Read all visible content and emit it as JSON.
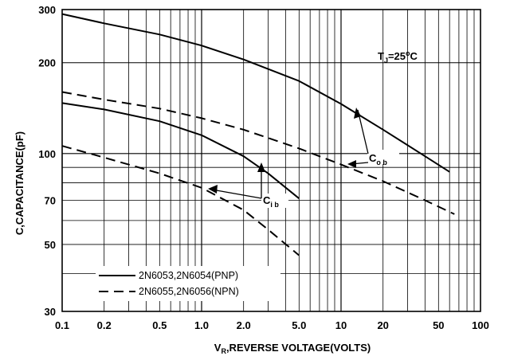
{
  "chart_data": {
    "type": "line",
    "xlabel_prefix": "V",
    "xlabel_sub": "R",
    "xlabel_rest": ",REVERSE VOLTAGE(VOLTS)",
    "ylabel": "C,CAPACITANCE(pF)",
    "xscale": "log",
    "yscale": "log",
    "xlim": [
      0.1,
      100
    ],
    "ylim": [
      30,
      300
    ],
    "grid": true,
    "x_ticks": [
      "0.1",
      "0.2",
      "0.5",
      "1.0",
      "2.0",
      "5.0",
      "10",
      "20",
      "50",
      "100"
    ],
    "y_ticks": [
      "30",
      "50",
      "70",
      "100",
      "200",
      "300"
    ],
    "legend": {
      "placement": "bottom-left",
      "entries": [
        {
          "label": "2N6053,2N6054(PNP)",
          "style": "solid"
        },
        {
          "label": "2N6055,2N6056(NPN)",
          "style": "dashed"
        }
      ]
    },
    "annotations": {
      "tj": {
        "prefix": "T",
        "sub": "J",
        "rest": "=25",
        "sup": "o",
        "unit": "C"
      },
      "cob": {
        "prefix": "C",
        "sub": "o b"
      },
      "cib": {
        "prefix": "C",
        "sub": "i b"
      }
    },
    "series": [
      {
        "group": "Cob",
        "style": "solid",
        "x": [
          0.1,
          0.2,
          0.5,
          1.0,
          2.0,
          5.0,
          10,
          20,
          40,
          60
        ],
        "y": [
          290,
          270,
          248,
          228,
          205,
          174,
          146,
          120,
          98,
          87
        ]
      },
      {
        "group": "Cob",
        "style": "dashed",
        "x": [
          0.1,
          0.2,
          0.5,
          1.0,
          2.0,
          5.0,
          10,
          20,
          40,
          65
        ],
        "y": [
          160,
          151,
          141,
          131,
          120,
          104,
          92,
          81,
          70,
          63
        ]
      },
      {
        "group": "Cib",
        "style": "solid",
        "x": [
          0.1,
          0.2,
          0.5,
          1.0,
          2.0,
          3.0,
          5.0
        ],
        "y": [
          147,
          140,
          128,
          115,
          98,
          86,
          71
        ]
      },
      {
        "group": "Cib",
        "style": "dashed",
        "x": [
          0.1,
          0.2,
          0.5,
          1.0,
          2.0,
          3.0,
          5.0
        ],
        "y": [
          106,
          97,
          86,
          77,
          65,
          56,
          46
        ]
      }
    ]
  }
}
